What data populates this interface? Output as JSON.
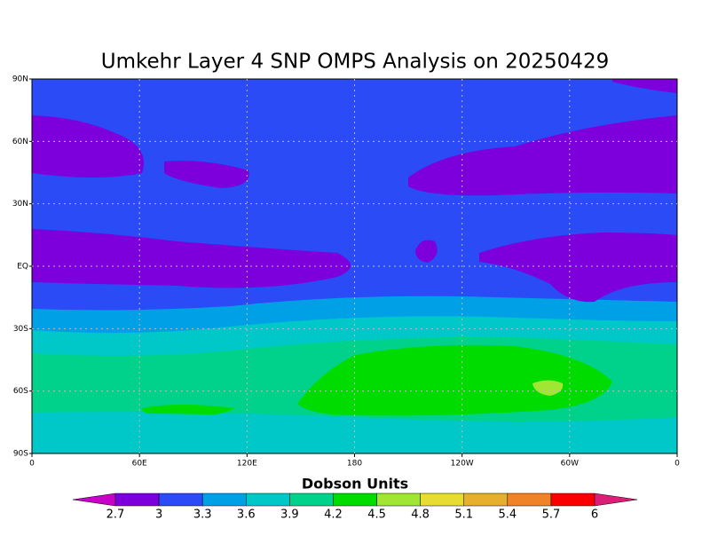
{
  "title": "Umkehr Layer 4 SNP OMPS Analysis on 20250429",
  "x_axis": {
    "lim": [
      0,
      360
    ],
    "ticks": [
      0,
      {
        "value": 60,
        "label": "60E"
      },
      {
        "value": 120,
        "label": "120E"
      },
      180,
      {
        "value": 240,
        "label": "120W"
      },
      {
        "value": 300,
        "label": "60W"
      },
      {
        "value": 360,
        "label": "0"
      }
    ]
  },
  "y_axis": {
    "lim": [
      -90,
      90
    ],
    "ticks": [
      {
        "value": -90,
        "label": "90S"
      },
      {
        "value": -60,
        "label": "60S"
      },
      {
        "value": -30,
        "label": "30S"
      },
      {
        "value": 0,
        "label": "EQ"
      },
      {
        "value": 30,
        "label": "30N"
      },
      {
        "value": 60,
        "label": "60N"
      },
      {
        "value": 90,
        "label": "90N"
      }
    ]
  },
  "colorbar": {
    "title": "Dobson Units",
    "levels": [
      2.7,
      3,
      3.3,
      3.6,
      3.9,
      4.2,
      4.5,
      4.8,
      5.1,
      5.4,
      5.7,
      6
    ],
    "colors": [
      "#c800c8",
      "#7d00dc",
      "#2a4bf5",
      "#00a0e6",
      "#00c8c8",
      "#00d28c",
      "#00dc00",
      "#a0e632",
      "#e6dc32",
      "#e6af2d",
      "#f08228",
      "#fa0000",
      "#dc1e78"
    ]
  }
}
